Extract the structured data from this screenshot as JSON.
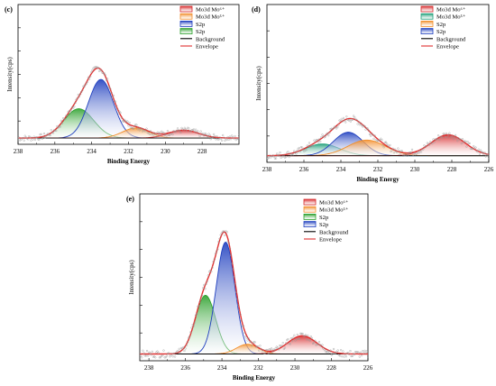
{
  "figure": {
    "colors": {
      "mo6": "#d62728",
      "mo5": "#f28e2b",
      "s2p_green": "#2ca02c",
      "s2p_blue": "#1f3fbf",
      "teal": "#1b9e77",
      "background": "#000000",
      "envelope": "#e03030",
      "raw": "#999999"
    }
  },
  "chart_data": [
    {
      "type": "line",
      "panel_label": "(c)",
      "xlabel": "Binding Energy",
      "ylabel": "Intensity(cps)",
      "xlim": [
        238,
        226
      ],
      "x_reversed": true,
      "ylim": [
        0,
        1
      ],
      "x_ticks": [
        "238",
        "236",
        "234",
        "232",
        "230",
        "228"
      ],
      "legend": [
        {
          "label": "Mo3d  Mo⁶⁺",
          "color": "#d62728",
          "style": "box"
        },
        {
          "label": "Mo3d  Mo⁵⁺",
          "color": "#f28e2b",
          "style": "box"
        },
        {
          "label": "S2p",
          "color": "#1f3fbf",
          "style": "box"
        },
        {
          "label": "S2p",
          "color": "#2ca02c",
          "style": "box"
        },
        {
          "label": "Background",
          "color": "#000000",
          "style": "line"
        },
        {
          "label": "Envelope",
          "color": "#e03030",
          "style": "line"
        }
      ],
      "baseline": 0.02,
      "peaks": [
        {
          "series": "S2p",
          "color": "#2ca02c",
          "center": 234.7,
          "height": 0.26,
          "fwhm": 1.9
        },
        {
          "series": "S2p",
          "color": "#1f3fbf",
          "center": 233.5,
          "height": 0.52,
          "fwhm": 1.6
        },
        {
          "series": "Mo3d Mo5+",
          "color": "#f28e2b",
          "center": 231.6,
          "height": 0.09,
          "fwhm": 1.7
        },
        {
          "series": "Mo3d Mo6+",
          "color": "#d62728",
          "center": 229.0,
          "height": 0.07,
          "fwhm": 1.9
        }
      ]
    },
    {
      "type": "line",
      "panel_label": "(d)",
      "xlabel": "Binding Energy",
      "ylabel": "Intensity(cps)",
      "xlim": [
        238,
        226
      ],
      "x_reversed": true,
      "ylim": [
        0,
        1
      ],
      "x_ticks": [
        "238",
        "236",
        "234",
        "232",
        "230",
        "228",
        "226"
      ],
      "legend": [
        {
          "label": "Mo3d  Mo⁶⁺",
          "color": "#d62728",
          "style": "box"
        },
        {
          "label": "Mo3d  Mo⁵⁺",
          "color": "#1b9e77",
          "style": "box"
        },
        {
          "label": "S2p",
          "color": "#f28e2b",
          "style": "box"
        },
        {
          "label": "S2p",
          "color": "#1f3fbf",
          "style": "box"
        },
        {
          "label": "Background",
          "color": "#000000",
          "style": "line"
        },
        {
          "label": "Envelope",
          "color": "#e03030",
          "style": "line"
        }
      ],
      "baseline": 0.02,
      "peaks": [
        {
          "series": "Mo3d Mo5+",
          "color": "#1b9e77",
          "center": 235.0,
          "height": 0.09,
          "fwhm": 2.2
        },
        {
          "series": "S2p",
          "color": "#1f3fbf",
          "center": 233.6,
          "height": 0.18,
          "fwhm": 1.9
        },
        {
          "series": "S2p",
          "color": "#f28e2b",
          "center": 232.6,
          "height": 0.12,
          "fwhm": 2.4
        },
        {
          "series": "Mo3d Mo6+",
          "color": "#d62728",
          "center": 228.2,
          "height": 0.16,
          "fwhm": 2.2
        }
      ]
    },
    {
      "type": "line",
      "panel_label": "(e)",
      "xlabel": "Binding Energy",
      "ylabel": "Intensity(cps)",
      "xlim": [
        238.5,
        226
      ],
      "x_reversed": true,
      "ylim": [
        0,
        1
      ],
      "x_ticks": [
        "238",
        "236",
        "234",
        "232",
        "230",
        "228",
        "226"
      ],
      "legend": [
        {
          "label": "Mo3d  Mo⁶⁺",
          "color": "#d62728",
          "style": "box"
        },
        {
          "label": "Mo3d  Mo⁵⁺",
          "color": "#f28e2b",
          "style": "box"
        },
        {
          "label": "S2p",
          "color": "#2ca02c",
          "style": "box"
        },
        {
          "label": "S2p",
          "color": "#1f3fbf",
          "style": "box"
        },
        {
          "label": "Background",
          "color": "#000000",
          "style": "line"
        },
        {
          "label": "Envelope",
          "color": "#e03030",
          "style": "line"
        }
      ],
      "baseline": 0.02,
      "peaks": [
        {
          "series": "S2p",
          "color": "#2ca02c",
          "center": 234.9,
          "height": 0.42,
          "fwhm": 1.3
        },
        {
          "series": "S2p",
          "color": "#1f3fbf",
          "center": 233.8,
          "height": 0.8,
          "fwhm": 1.2
        },
        {
          "series": "Mo3d Mo5+",
          "color": "#f28e2b",
          "center": 232.6,
          "height": 0.07,
          "fwhm": 1.4
        },
        {
          "series": "Mo3d Mo6+",
          "color": "#d62728",
          "center": 229.6,
          "height": 0.13,
          "fwhm": 1.9
        }
      ]
    }
  ]
}
